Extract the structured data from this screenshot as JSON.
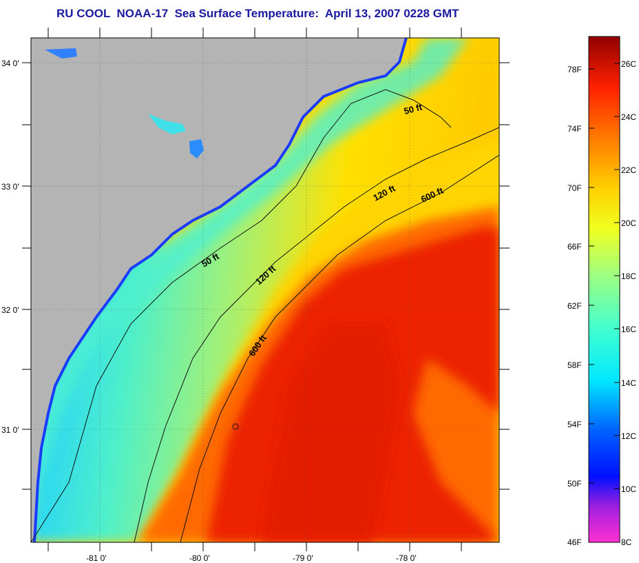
{
  "title": "RU COOL  NOAA-17  Sea Surface Temperature:  April 13, 2007 0228 GMT",
  "map": {
    "lat_labels": [
      "34 0'",
      "33 0'",
      "32 0'",
      "31 0'"
    ],
    "lon_labels": [
      "-81 0'",
      "-80 0'",
      "-79 0'",
      "-78 0'"
    ],
    "contour_labels": [
      "50 ft",
      "120 ft",
      "600 ft",
      "50 ft",
      "120 ft",
      "600 ft"
    ],
    "colors": {
      "land": "#b4b4b4",
      "warm_core": "#e82000",
      "gulf_stream": "#ff5a00",
      "shelf": "#ffd200",
      "cool": "#3cf0d0"
    }
  },
  "colorbar": {
    "fahrenheit_labels": [
      "78F",
      "74F",
      "70F",
      "66F",
      "62F",
      "58F",
      "54F",
      "50F",
      "46F"
    ],
    "celsius_labels": [
      "26C",
      "24C",
      "22C",
      "20C",
      "18C",
      "16C",
      "14C",
      "12C",
      "10C",
      "8C"
    ]
  }
}
